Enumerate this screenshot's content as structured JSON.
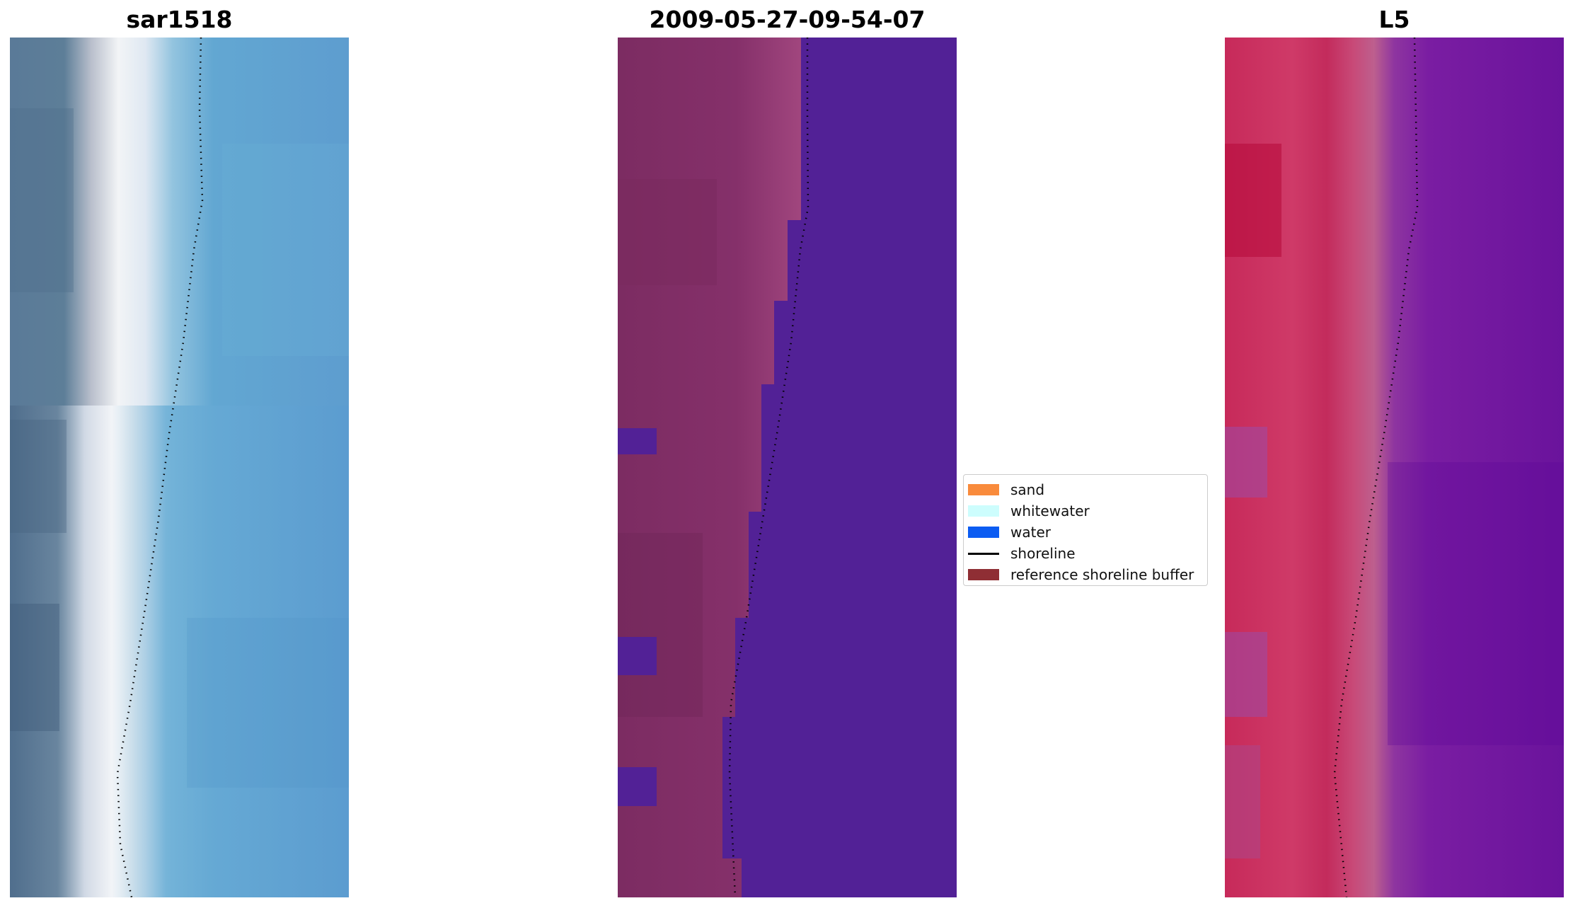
{
  "panels": [
    {
      "title": "sar1518"
    },
    {
      "title": "2009-05-27-09-54-07"
    },
    {
      "title": "L5"
    }
  ],
  "legend": {
    "items": [
      {
        "label": "sand",
        "color": "#f98b3c"
      },
      {
        "label": "whitewater",
        "color": "#cdfdfd"
      },
      {
        "label": "water",
        "color": "#0b5cf2"
      },
      {
        "label": "shoreline",
        "color": "#000000"
      },
      {
        "label": "reference shoreline buffer",
        "color": "#8f2e34"
      }
    ]
  }
}
